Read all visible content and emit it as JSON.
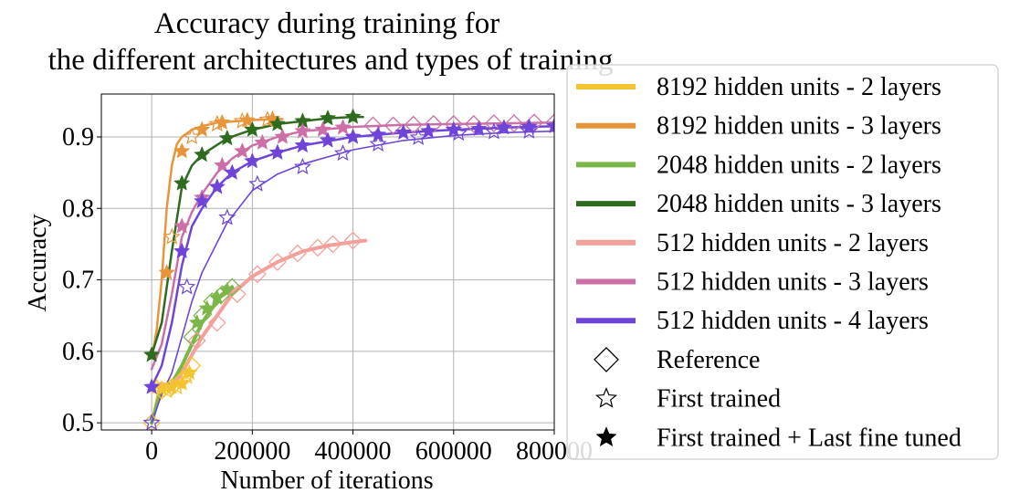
{
  "chart_data": {
    "type": "line",
    "title": [
      "Accuracy during training for",
      "the different architectures and types of training"
    ],
    "xlabel": "Number of iterations",
    "ylabel": "Accuracy",
    "xlim": [
      -100000,
      800000
    ],
    "ylim": [
      0.49,
      0.96
    ],
    "xticks": [
      0,
      200000,
      400000,
      600000,
      800000
    ],
    "xtick_labels": [
      "0",
      "200000",
      "400000",
      "600000",
      "800000"
    ],
    "yticks": [
      0.5,
      0.6,
      0.7,
      0.8,
      0.9
    ],
    "ytick_labels": [
      "0.5",
      "0.6",
      "0.7",
      "0.8",
      "0.9"
    ],
    "grid": true,
    "legend_position": "right, outside plot",
    "series": [
      {
        "name": "8192 hidden units - 2 layers",
        "color": "#f4c430",
        "x": [
          0,
          15000,
          30000,
          45000,
          60000,
          75000
        ],
        "y": [
          0.5,
          0.55,
          0.545,
          0.55,
          0.56,
          0.575
        ]
      },
      {
        "name": "8192 hidden units - 3 layers",
        "color": "#e8943a",
        "x": [
          0,
          10000,
          20000,
          30000,
          40000,
          50000,
          60000,
          70000,
          80000,
          100000,
          130000,
          170000,
          210000,
          260000
        ],
        "y": [
          0.59,
          0.63,
          0.7,
          0.8,
          0.86,
          0.89,
          0.9,
          0.905,
          0.91,
          0.915,
          0.92,
          0.922,
          0.924,
          0.925
        ]
      },
      {
        "name": "2048 hidden units - 2 layers",
        "color": "#7ab648",
        "x": [
          0,
          20000,
          40000,
          60000,
          80000,
          100000,
          120000,
          140000,
          160000
        ],
        "y": [
          0.5,
          0.55,
          0.555,
          0.58,
          0.61,
          0.64,
          0.66,
          0.68,
          0.69
        ]
      },
      {
        "name": "2048 hidden units - 3 layers",
        "color": "#2e6b1e",
        "x": [
          0,
          20000,
          40000,
          60000,
          80000,
          100000,
          150000,
          200000,
          250000,
          300000,
          350000,
          400000,
          420000
        ],
        "y": [
          0.595,
          0.64,
          0.74,
          0.83,
          0.86,
          0.875,
          0.898,
          0.91,
          0.918,
          0.922,
          0.926,
          0.928,
          0.928
        ]
      },
      {
        "name": "512 hidden units - 2 layers",
        "color": "#f4a09a",
        "x": [
          0,
          20000,
          40000,
          60000,
          80000,
          100000,
          130000,
          160000,
          200000,
          250000,
          300000,
          350000,
          400000,
          425000
        ],
        "y": [
          0.55,
          0.555,
          0.55,
          0.57,
          0.595,
          0.62,
          0.65,
          0.68,
          0.705,
          0.725,
          0.74,
          0.748,
          0.753,
          0.755
        ]
      },
      {
        "name": "512 hidden units - 3 layers",
        "color": "#cc6fa6",
        "x": [
          0,
          20000,
          40000,
          60000,
          80000,
          100000,
          130000,
          160000,
          200000,
          250000,
          300000,
          400000,
          500000,
          600000,
          700000,
          800000
        ],
        "y": [
          0.575,
          0.61,
          0.68,
          0.76,
          0.795,
          0.82,
          0.85,
          0.87,
          0.888,
          0.9,
          0.908,
          0.914,
          0.917,
          0.918,
          0.919,
          0.92
        ]
      },
      {
        "name": "512 hidden units - 4 layers",
        "color": "#6e45d8",
        "x": [
          0,
          20000,
          40000,
          60000,
          80000,
          100000,
          130000,
          160000,
          200000,
          250000,
          300000,
          400000,
          500000,
          600000,
          700000,
          800000
        ],
        "y": [
          0.55,
          0.58,
          0.64,
          0.72,
          0.775,
          0.8,
          0.83,
          0.85,
          0.866,
          0.878,
          0.888,
          0.9,
          0.906,
          0.91,
          0.913,
          0.915
        ]
      },
      {
        "name": "512 hidden units - 4 layers (first trained)",
        "color": "#6e45d8",
        "x": [
          0,
          20000,
          40000,
          60000,
          80000,
          100000,
          150000,
          200000,
          250000,
          300000,
          400000,
          500000,
          600000,
          700000,
          800000
        ],
        "y": [
          0.5,
          0.54,
          0.57,
          0.62,
          0.67,
          0.71,
          0.78,
          0.825,
          0.848,
          0.862,
          0.882,
          0.895,
          0.902,
          0.906,
          0.908
        ]
      }
    ],
    "legend": [
      {
        "label": "8192 hidden units - 2 layers",
        "kind": "line",
        "color": "#f4c430"
      },
      {
        "label": "8192 hidden units - 3 layers",
        "kind": "line",
        "color": "#e8943a"
      },
      {
        "label": "2048 hidden units - 2 layers",
        "kind": "line",
        "color": "#7ab648"
      },
      {
        "label": "2048 hidden units - 3 layers",
        "kind": "line",
        "color": "#2e6b1e"
      },
      {
        "label": "512 hidden units - 2 layers",
        "kind": "line",
        "color": "#f4a09a"
      },
      {
        "label": "512 hidden units - 3 layers",
        "kind": "line",
        "color": "#cc6fa6"
      },
      {
        "label": "512 hidden units - 4 layers",
        "kind": "line",
        "color": "#6e45d8"
      },
      {
        "label": "Reference",
        "kind": "diamond-open",
        "color": "#000000"
      },
      {
        "label": "First trained",
        "kind": "star-open",
        "color": "#000000"
      },
      {
        "label": "First trained + Last fine tuned",
        "kind": "star-filled",
        "color": "#000000"
      }
    ],
    "markers": [
      {
        "series": 0,
        "symbol": "diamond-open",
        "x": [
          0,
          20000,
          40000,
          60000,
          80000
        ],
        "y": [
          0.5,
          0.545,
          0.55,
          0.56,
          0.58
        ]
      },
      {
        "series": 0,
        "symbol": "star-open",
        "x": [
          10000,
          30000,
          50000,
          70000
        ],
        "y": [
          0.55,
          0.545,
          0.55,
          0.565
        ]
      },
      {
        "series": 0,
        "symbol": "star-filled",
        "x": [
          20000,
          40000,
          60000,
          75000
        ],
        "y": [
          0.548,
          0.55,
          0.555,
          0.57
        ]
      },
      {
        "series": 1,
        "symbol": "star-filled",
        "x": [
          30000,
          60000,
          100000,
          140000,
          190000,
          240000
        ],
        "y": [
          0.71,
          0.88,
          0.91,
          0.92,
          0.923,
          0.925
        ]
      },
      {
        "series": 1,
        "symbol": "star-open",
        "x": [
          40000,
          80000,
          130000,
          180000,
          230000
        ],
        "y": [
          0.76,
          0.9,
          0.918,
          0.922,
          0.924
        ]
      },
      {
        "series": 2,
        "symbol": "diamond-open",
        "x": [
          80000,
          100000,
          120000,
          140000,
          160000
        ],
        "y": [
          0.62,
          0.65,
          0.67,
          0.68,
          0.69
        ]
      },
      {
        "series": 2,
        "symbol": "star-filled",
        "x": [
          90000,
          110000,
          130000,
          150000
        ],
        "y": [
          0.64,
          0.66,
          0.675,
          0.685
        ]
      },
      {
        "series": 3,
        "symbol": "star-filled",
        "x": [
          0,
          60000,
          100000,
          150000,
          200000,
          250000,
          300000,
          350000,
          400000
        ],
        "y": [
          0.595,
          0.835,
          0.875,
          0.898,
          0.91,
          0.918,
          0.922,
          0.926,
          0.928
        ]
      },
      {
        "series": 4,
        "symbol": "diamond-open",
        "x": [
          90000,
          130000,
          170000,
          210000,
          250000,
          290000,
          330000,
          360000,
          400000
        ],
        "y": [
          0.615,
          0.64,
          0.68,
          0.708,
          0.725,
          0.737,
          0.745,
          0.75,
          0.755
        ]
      },
      {
        "series": 5,
        "symbol": "star-filled",
        "x": [
          60000,
          100000,
          140000,
          180000,
          220000,
          260000,
          300000,
          340000,
          380000
        ],
        "y": [
          0.775,
          0.815,
          0.86,
          0.88,
          0.892,
          0.9,
          0.908,
          0.91,
          0.913
        ]
      },
      {
        "series": 5,
        "symbol": "diamond-open",
        "x": [
          440000,
          480000,
          520000,
          560000,
          600000,
          640000,
          680000,
          720000,
          760000,
          800000
        ],
        "y": [
          0.916,
          0.916,
          0.917,
          0.918,
          0.918,
          0.918,
          0.919,
          0.919,
          0.92,
          0.92
        ]
      },
      {
        "series": 6,
        "symbol": "star-filled",
        "x": [
          0,
          60000,
          100000,
          130000,
          160000,
          200000,
          250000,
          300000,
          350000,
          400000,
          450000,
          500000,
          550000,
          600000,
          650000,
          700000,
          750000,
          800000
        ],
        "y": [
          0.55,
          0.74,
          0.81,
          0.83,
          0.85,
          0.866,
          0.878,
          0.888,
          0.895,
          0.9,
          0.903,
          0.906,
          0.908,
          0.91,
          0.911,
          0.913,
          0.914,
          0.915
        ]
      },
      {
        "series": 7,
        "symbol": "star-open",
        "x": [
          0,
          70000,
          150000,
          210000,
          300000,
          380000,
          450000,
          530000,
          610000,
          680000,
          750000
        ],
        "y": [
          0.5,
          0.69,
          0.787,
          0.834,
          0.858,
          0.877,
          0.89,
          0.899,
          0.905,
          0.907,
          0.908
        ]
      }
    ]
  }
}
